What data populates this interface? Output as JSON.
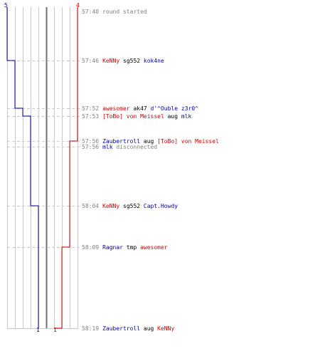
{
  "colors": {
    "blue": "#0000b0",
    "red": "#d00000",
    "grid": "#c8c8c8",
    "center": "#707070",
    "text": "#808080"
  },
  "axis": {
    "blue_max": "5",
    "red_max": "4",
    "blue_end": "1",
    "red_end": "1"
  },
  "events": [
    {
      "time": "57:40",
      "parts": [
        {
          "text": "round started",
          "color": "#808080"
        }
      ]
    },
    {
      "time": "57:46",
      "parts": [
        {
          "text": "KeNNy",
          "color": "#d00000"
        },
        {
          "text": " sg552 ",
          "color": "#000000"
        },
        {
          "text": "kok4ne",
          "color": "#0000b0"
        }
      ]
    },
    {
      "time": "57:52",
      "parts": [
        {
          "text": "awesomer",
          "color": "#d00000"
        },
        {
          "text": " ak47 ",
          "color": "#000000"
        },
        {
          "text": "d'^Ouble z3r0^",
          "color": "#0000b0"
        }
      ]
    },
    {
      "time": "57:53",
      "parts": [
        {
          "text": "[ToBo] von Meissel",
          "color": "#d00000"
        },
        {
          "text": " aug ",
          "color": "#000000"
        },
        {
          "text": "mlk",
          "color": "#0000b0"
        }
      ]
    },
    {
      "time": "57:56",
      "parts": [
        {
          "text": "Zaubertroll",
          "color": "#0000b0"
        },
        {
          "text": " aug ",
          "color": "#000000"
        },
        {
          "text": "[ToBo] von Meissel",
          "color": "#d00000"
        }
      ]
    },
    {
      "time": "57:56",
      "parts": [
        {
          "text": "mlk",
          "color": "#0000b0"
        },
        {
          "text": " disconnected",
          "color": "#808080"
        }
      ]
    },
    {
      "time": "58:04",
      "parts": [
        {
          "text": "KeNNy",
          "color": "#d00000"
        },
        {
          "text": " sg552 ",
          "color": "#000000"
        },
        {
          "text": "Capt.Howdy",
          "color": "#0000b0"
        }
      ]
    },
    {
      "time": "58:09",
      "parts": [
        {
          "text": "Ragnar",
          "color": "#0000b0"
        },
        {
          "text": " tmp ",
          "color": "#000000"
        },
        {
          "text": "awesomer",
          "color": "#d00000"
        }
      ]
    },
    {
      "time": "58:19",
      "parts": [
        {
          "text": "Zaubertroll",
          "color": "#0000b0"
        },
        {
          "text": " aug ",
          "color": "#000000"
        },
        {
          "text": "KeNNy",
          "color": "#d00000"
        }
      ]
    }
  ],
  "blue_alive_steps": [
    5,
    4,
    3,
    2,
    2,
    2,
    1,
    1,
    1
  ],
  "red_alive_steps": [
    4,
    4,
    4,
    4,
    3,
    3,
    3,
    2,
    1
  ]
}
